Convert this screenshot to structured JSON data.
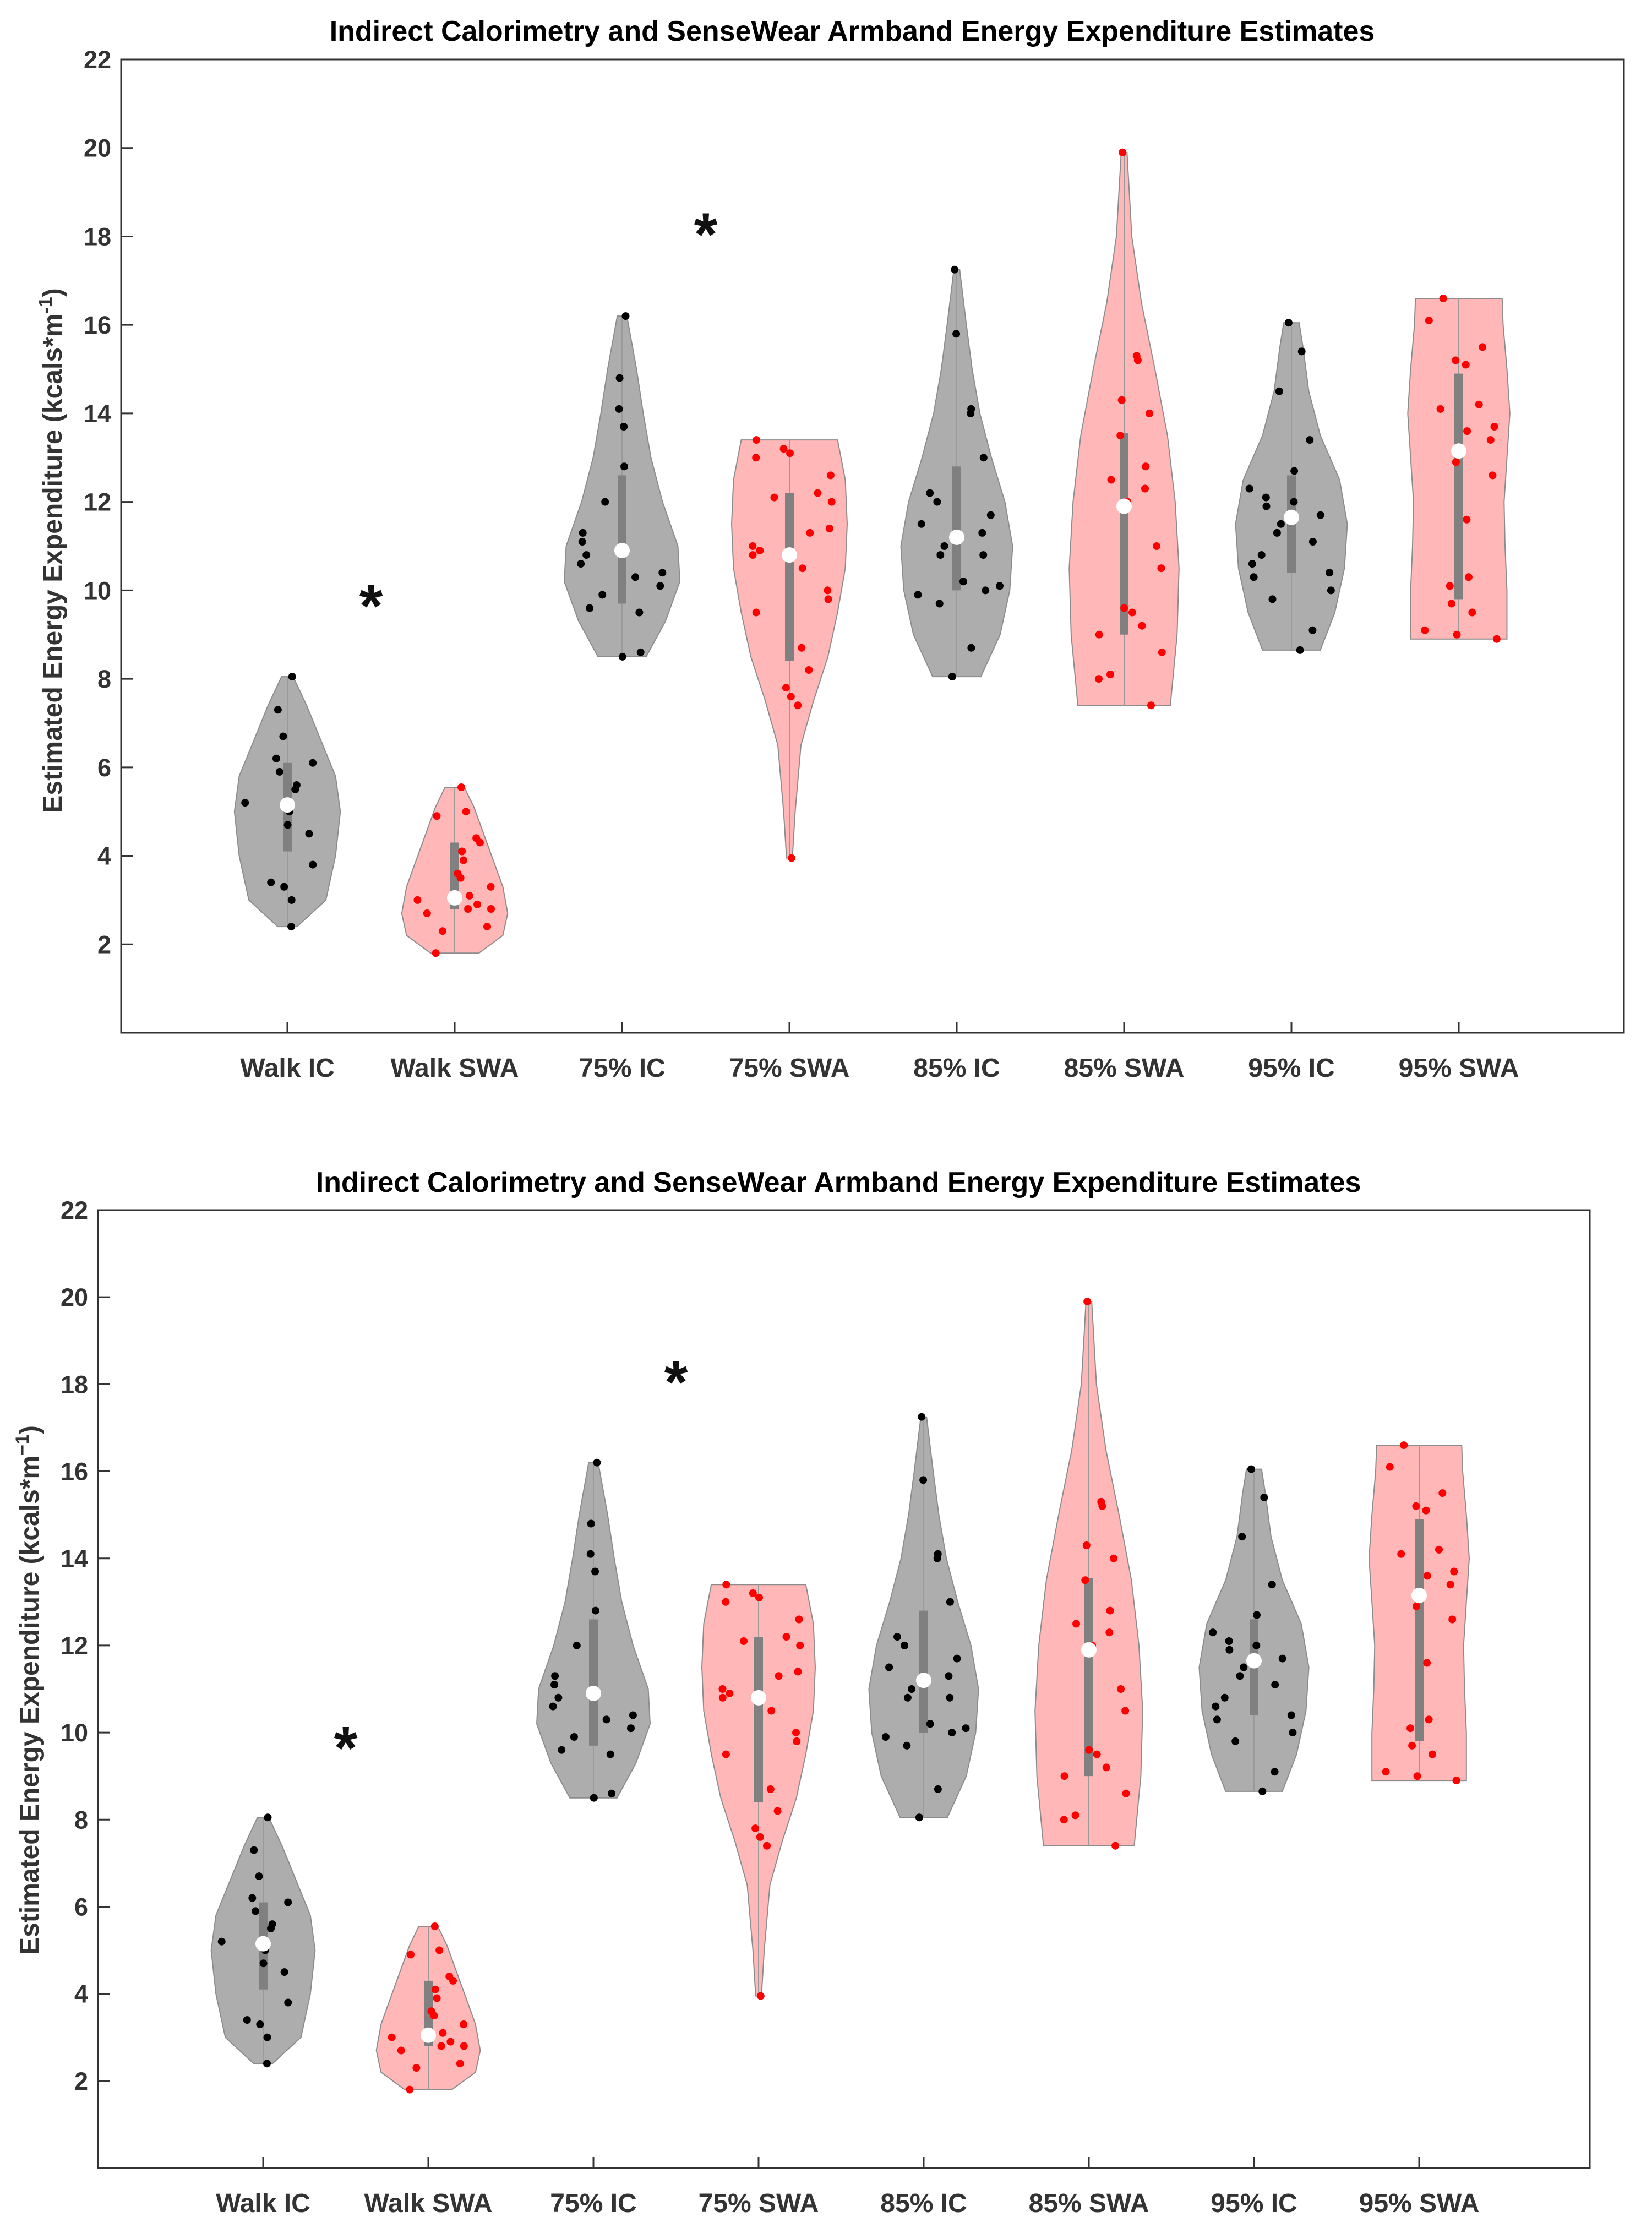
{
  "chart_data": [
    {
      "type": "violin",
      "title": "Indirect Calorimetry and SenseWear Armband Energy Expenditure Estimates",
      "ylabel": "Estimated Energy Expenditure (kcals*m",
      "ylabel_sup": "-1",
      "ylabel_end": ")",
      "ylim": [
        0,
        22
      ],
      "yticks": [
        2,
        4,
        6,
        8,
        10,
        12,
        14,
        16,
        18,
        20,
        22
      ],
      "categories": [
        "Walk IC",
        "Walk SWA",
        "75% IC",
        "75% SWA",
        "85% IC",
        "85% SWA",
        "95% IC",
        "95% SWA"
      ],
      "annotations": [
        {
          "text": "*",
          "x_between": [
            1,
            2
          ],
          "y": 9.8
        },
        {
          "text": "*",
          "x_between": [
            3,
            4
          ],
          "y": 18.2
        }
      ],
      "groups": [
        {
          "name": "Walk IC",
          "color": "#a9a9a9",
          "dot_color": "#000000",
          "min": 2.4,
          "max": 8.05,
          "q1": 4.1,
          "median": 5.15,
          "q3": 6.1,
          "density": [
            [
              2.4,
              0.1
            ],
            [
              3,
              0.4
            ],
            [
              4,
              0.5
            ],
            [
              5,
              0.55
            ],
            [
              5.8,
              0.5
            ],
            [
              6.6,
              0.35
            ],
            [
              7.4,
              0.2
            ],
            [
              8.05,
              0.06
            ]
          ],
          "points": [
            2.4,
            3.0,
            3.3,
            3.4,
            3.8,
            4.5,
            4.7,
            5.0,
            5.2,
            5.2,
            5.5,
            5.6,
            5.9,
            6.1,
            6.2,
            6.7,
            7.3,
            8.05
          ]
        },
        {
          "name": "Walk SWA",
          "color": "#ffb3b3",
          "dot_color": "#ff0000",
          "min": 1.8,
          "max": 5.55,
          "q1": 2.8,
          "median": 3.05,
          "q3": 4.3,
          "density": [
            [
              1.8,
              0.25
            ],
            [
              2.2,
              0.5
            ],
            [
              2.7,
              0.55
            ],
            [
              3.3,
              0.5
            ],
            [
              3.9,
              0.4
            ],
            [
              4.5,
              0.3
            ],
            [
              5.1,
              0.2
            ],
            [
              5.55,
              0.1
            ]
          ],
          "points": [
            1.8,
            2.3,
            2.4,
            2.7,
            2.8,
            2.8,
            2.9,
            3.0,
            3.1,
            3.3,
            3.5,
            3.6,
            3.9,
            4.1,
            4.3,
            4.4,
            4.9,
            5.0,
            5.55
          ]
        },
        {
          "name": "75% IC",
          "color": "#a9a9a9",
          "dot_color": "#000000",
          "min": 8.5,
          "max": 16.2,
          "q1": 9.7,
          "median": 10.9,
          "q3": 12.6,
          "density": [
            [
              8.5,
              0.25
            ],
            [
              9.3,
              0.45
            ],
            [
              10.2,
              0.6
            ],
            [
              11,
              0.58
            ],
            [
              12,
              0.42
            ],
            [
              13,
              0.3
            ],
            [
              14,
              0.22
            ],
            [
              15,
              0.15
            ],
            [
              16.2,
              0.05
            ]
          ],
          "points": [
            8.5,
            8.6,
            9.5,
            9.6,
            9.9,
            10.1,
            10.3,
            10.4,
            10.6,
            10.8,
            11.1,
            11.3,
            12.0,
            12.8,
            13.7,
            14.1,
            14.8,
            16.2
          ]
        },
        {
          "name": "75% SWA",
          "color": "#ffb3b3",
          "dot_color": "#ff0000",
          "min": 3.95,
          "max": 13.4,
          "q1": 8.4,
          "median": 10.8,
          "q3": 12.2,
          "density": [
            [
              3.95,
              0.03
            ],
            [
              5,
              0.06
            ],
            [
              6.5,
              0.12
            ],
            [
              7.5,
              0.25
            ],
            [
              8.5,
              0.4
            ],
            [
              9.5,
              0.5
            ],
            [
              10.5,
              0.58
            ],
            [
              11.5,
              0.6
            ],
            [
              12.5,
              0.58
            ],
            [
              13.4,
              0.5
            ]
          ],
          "points": [
            3.95,
            7.4,
            7.6,
            7.8,
            8.2,
            8.7,
            9.5,
            9.8,
            10.0,
            10.5,
            10.8,
            10.9,
            11.0,
            11.3,
            11.4,
            12.0,
            12.1,
            12.2,
            12.6,
            13.0,
            13.1,
            13.2,
            13.4
          ]
        },
        {
          "name": "85% IC",
          "color": "#a9a9a9",
          "dot_color": "#000000",
          "min": 8.05,
          "max": 17.25,
          "q1": 10.0,
          "median": 11.2,
          "q3": 12.8,
          "density": [
            [
              8.05,
              0.25
            ],
            [
              9,
              0.45
            ],
            [
              10,
              0.55
            ],
            [
              11,
              0.58
            ],
            [
              12,
              0.5
            ],
            [
              13,
              0.36
            ],
            [
              14,
              0.24
            ],
            [
              15,
              0.16
            ],
            [
              16,
              0.1
            ],
            [
              17.25,
              0.03
            ]
          ],
          "points": [
            8.05,
            8.7,
            9.7,
            9.9,
            10.0,
            10.1,
            10.2,
            10.8,
            10.8,
            11.0,
            11.3,
            11.5,
            11.7,
            12.0,
            12.2,
            13.0,
            14.0,
            14.1,
            15.8,
            17.25
          ]
        },
        {
          "name": "85% SWA",
          "color": "#ffb3b3",
          "dot_color": "#ff0000",
          "min": 7.4,
          "max": 19.9,
          "q1": 9.0,
          "median": 11.9,
          "q3": 13.55,
          "density": [
            [
              7.4,
              0.48
            ],
            [
              9,
              0.55
            ],
            [
              10.5,
              0.57
            ],
            [
              12,
              0.53
            ],
            [
              13.5,
              0.45
            ],
            [
              15,
              0.32
            ],
            [
              16.5,
              0.18
            ],
            [
              18,
              0.08
            ],
            [
              19.9,
              0.03
            ]
          ],
          "points": [
            7.4,
            8.0,
            8.1,
            8.6,
            9.0,
            9.2,
            9.5,
            9.6,
            10.5,
            11.0,
            12.0,
            12.3,
            12.5,
            12.8,
            13.5,
            14.0,
            14.3,
            15.2,
            15.3,
            19.9
          ]
        },
        {
          "name": "95% IC",
          "color": "#a9a9a9",
          "dot_color": "#000000",
          "min": 8.65,
          "max": 16.05,
          "q1": 10.4,
          "median": 11.65,
          "q3": 12.6,
          "density": [
            [
              8.65,
              0.3
            ],
            [
              9.5,
              0.45
            ],
            [
              10.5,
              0.55
            ],
            [
              11.5,
              0.58
            ],
            [
              12.5,
              0.5
            ],
            [
              13.5,
              0.3
            ],
            [
              14.5,
              0.18
            ],
            [
              15.5,
              0.12
            ],
            [
              16.05,
              0.08
            ]
          ],
          "points": [
            8.65,
            9.1,
            9.8,
            10.0,
            10.3,
            10.4,
            10.6,
            10.8,
            11.1,
            11.3,
            11.5,
            11.7,
            11.9,
            12.0,
            12.1,
            12.3,
            12.7,
            13.4,
            14.5,
            15.4,
            16.05
          ]
        },
        {
          "name": "95% SWA",
          "color": "#ffb3b3",
          "dot_color": "#ff0000",
          "min": 8.9,
          "max": 16.6,
          "q1": 9.8,
          "median": 13.15,
          "q3": 14.9,
          "density": [
            [
              8.9,
              0.5
            ],
            [
              10,
              0.5
            ],
            [
              11,
              0.48
            ],
            [
              12,
              0.47
            ],
            [
              13,
              0.5
            ],
            [
              14,
              0.53
            ],
            [
              15,
              0.5
            ],
            [
              16,
              0.46
            ],
            [
              16.6,
              0.45
            ]
          ],
          "points": [
            8.9,
            9.0,
            9.1,
            9.5,
            9.7,
            10.1,
            10.3,
            11.6,
            12.6,
            12.9,
            13.4,
            13.6,
            13.7,
            14.1,
            14.2,
            15.1,
            15.2,
            15.5,
            16.1,
            16.6
          ]
        }
      ]
    },
    {
      "type": "violin",
      "title": "Indirect Calorimetry and SenseWear Armband Energy Expenditure Estimates",
      "ylabel": "Estimated Energy Expenditure (kcals*m",
      "ylabel_sup": "−1",
      "ylabel_end": ")",
      "ylim": [
        0,
        22
      ],
      "yticks": [
        2,
        4,
        6,
        8,
        10,
        12,
        14,
        16,
        18,
        20,
        22
      ],
      "categories": [
        "Walk IC",
        "Walk SWA",
        "75% IC",
        "75% SWA",
        "85% IC",
        "85% SWA",
        "95% IC",
        "95% SWA"
      ],
      "annotations": [
        {
          "text": "*",
          "x_between": [
            1,
            2
          ],
          "y": 9.8
        },
        {
          "text": "*",
          "x_between": [
            3,
            4
          ],
          "y": 18.2
        }
      ],
      "groups": "same as chart 1"
    }
  ]
}
